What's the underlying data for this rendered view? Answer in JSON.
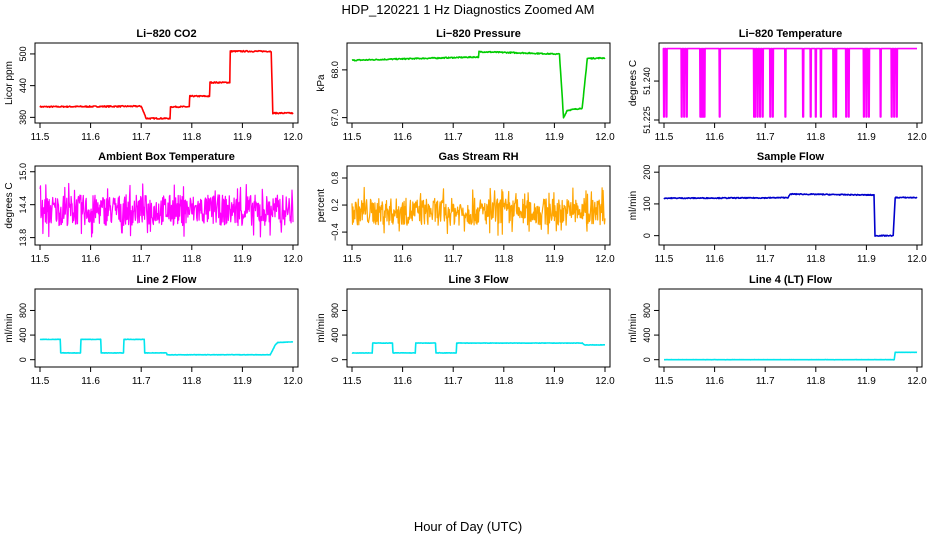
{
  "figure": {
    "title": "HDP_120221  1 Hz Diagnostics Zoomed AM",
    "xlabel": "Hour of Day (UTC)"
  },
  "chart_data": [
    {
      "type": "line",
      "title": "Li−820 CO2",
      "ylabel": "Licor ppm",
      "color": "#ff0000",
      "xlim": [
        11.5,
        12.0
      ],
      "ylim": [
        375,
        515
      ],
      "xticks": [
        "11.5",
        "11.6",
        "11.7",
        "11.8",
        "11.9",
        "12.0"
      ],
      "yticks": [
        {
          "v": 380,
          "label": "380"
        },
        {
          "v": 440,
          "label": "440"
        },
        {
          "v": 500,
          "label": "500"
        }
      ],
      "series": [
        {
          "name": "CO2",
          "steps": [
            [
              11.5,
              400
            ],
            [
              11.7,
              401
            ],
            [
              11.71,
              378
            ],
            [
              11.757,
              378
            ],
            [
              11.758,
              400
            ],
            [
              11.795,
              400
            ],
            [
              11.796,
              420
            ],
            [
              11.835,
              420
            ],
            [
              11.836,
              446
            ],
            [
              11.875,
              446
            ],
            [
              11.876,
              505
            ],
            [
              11.957,
              505
            ],
            [
              11.96,
              388
            ],
            [
              12.0,
              388
            ]
          ],
          "noise": 1.2
        }
      ]
    },
    {
      "type": "line",
      "title": "Li−820 Pressure",
      "ylabel": "kPa",
      "color": "#00cc00",
      "xlim": [
        11.5,
        12.0
      ],
      "ylim": [
        66.95,
        68.5
      ],
      "xticks": [
        "11.5",
        "11.6",
        "11.7",
        "11.8",
        "11.9",
        "12.0"
      ],
      "yticks": [
        {
          "v": 67.0,
          "label": "67.0"
        },
        {
          "v": 68.0,
          "label": "68.0"
        }
      ],
      "series": [
        {
          "name": "Pressure",
          "steps": [
            [
              11.5,
              68.2
            ],
            [
              11.6,
              68.23
            ],
            [
              11.75,
              68.27
            ],
            [
              11.751,
              68.38
            ],
            [
              11.85,
              68.35
            ],
            [
              11.91,
              68.33
            ],
            [
              11.918,
              67.0
            ],
            [
              11.925,
              67.15
            ],
            [
              11.955,
              67.2
            ],
            [
              11.965,
              68.24
            ],
            [
              12.0,
              68.25
            ]
          ],
          "noise": 0.012
        }
      ]
    },
    {
      "type": "line",
      "title": "Li−820 Temperature",
      "ylabel": "degrees C",
      "color": "#ff00ff",
      "xlim": [
        11.5,
        12.0
      ],
      "ylim": [
        51.225,
        51.2535
      ],
      "xticks": [
        "11.5",
        "11.6",
        "11.7",
        "11.8",
        "11.9",
        "12.0"
      ],
      "yticks": [
        {
          "v": 51.225,
          "label": "51.225"
        },
        {
          "v": 51.24,
          "label": "51.240"
        }
      ],
      "series": [
        {
          "name": "Temperature",
          "base": 51.2525,
          "dropTo": 51.2262,
          "drops": [
            11.5,
            11.505,
            11.535,
            11.54,
            11.545,
            11.572,
            11.575,
            11.578,
            11.58,
            11.61,
            11.678,
            11.68,
            11.685,
            11.69,
            11.695,
            11.71,
            11.715,
            11.74,
            11.775,
            11.79,
            11.8,
            11.81,
            11.835,
            11.84,
            11.86,
            11.865,
            11.895,
            11.9,
            11.9,
            11.905,
            11.928,
            11.95,
            11.955,
            11.96
          ]
        }
      ]
    },
    {
      "type": "line",
      "title": "Ambient Box Temperature",
      "ylabel": "degrees C",
      "color": "#ff00ff",
      "xlim": [
        11.5,
        12.0
      ],
      "ylim": [
        13.72,
        15.05
      ],
      "xticks": [
        "11.5",
        "11.6",
        "11.7",
        "11.8",
        "11.9",
        "12.0"
      ],
      "yticks": [
        {
          "v": 13.8,
          "label": "13.8"
        },
        {
          "v": 14.4,
          "label": "14.4"
        },
        {
          "v": 15.0,
          "label": "15.0"
        }
      ],
      "series": [
        {
          "name": "Ambient",
          "center": 14.3,
          "amp": 0.28,
          "spike": 0.5
        }
      ]
    },
    {
      "type": "line",
      "title": "Gas Stream RH",
      "ylabel": "percent",
      "color": "#ffa500",
      "xlim": [
        11.5,
        12.0
      ],
      "ylim": [
        -0.62,
        1.0
      ],
      "xticks": [
        "11.5",
        "11.6",
        "11.7",
        "11.8",
        "11.9",
        "12.0"
      ],
      "yticks": [
        {
          "v": -0.4,
          "label": "−0.4"
        },
        {
          "v": 0.2,
          "label": "0.2"
        },
        {
          "v": 0.8,
          "label": "0.8"
        }
      ],
      "series": [
        {
          "name": "RH",
          "center": 0.05,
          "amp": 0.3,
          "spike": 0.55
        }
      ]
    },
    {
      "type": "line",
      "title": "Sample Flow",
      "ylabel": "ml/min",
      "color": "#0000cc",
      "xlim": [
        11.5,
        12.0
      ],
      "ylim": [
        -20,
        210
      ],
      "xticks": [
        "11.5",
        "11.6",
        "11.7",
        "11.8",
        "11.9",
        "12.0"
      ],
      "yticks": [
        {
          "v": 0,
          "label": "0"
        },
        {
          "v": 100,
          "label": "100"
        },
        {
          "v": 200,
          "label": "200"
        }
      ],
      "series": [
        {
          "name": "Sample",
          "steps": [
            [
              11.5,
              118
            ],
            [
              11.7,
              119
            ],
            [
              11.745,
              120
            ],
            [
              11.75,
              131
            ],
            [
              11.915,
              128
            ],
            [
              11.917,
              0
            ],
            [
              11.953,
              0
            ],
            [
              11.957,
              120
            ],
            [
              12.0,
              120
            ]
          ],
          "noise": 1.5
        }
      ]
    },
    {
      "type": "line",
      "title": "Line 2 Flow",
      "ylabel": "ml/min",
      "color": "#00e5ee",
      "xlim": [
        11.5,
        12.0
      ],
      "ylim": [
        -70,
        1100
      ],
      "xticks": [
        "11.5",
        "11.6",
        "11.7",
        "11.8",
        "11.9",
        "12.0"
      ],
      "yticks": [
        {
          "v": 0,
          "label": "0"
        },
        {
          "v": 400,
          "label": "400"
        },
        {
          "v": 800,
          "label": "800"
        }
      ],
      "series": [
        {
          "name": "Line 2",
          "steps": [
            [
              11.5,
              330
            ],
            [
              11.54,
              330
            ],
            [
              11.541,
              110
            ],
            [
              11.58,
              110
            ],
            [
              11.581,
              330
            ],
            [
              11.62,
              330
            ],
            [
              11.621,
              110
            ],
            [
              11.665,
              110
            ],
            [
              11.666,
              330
            ],
            [
              11.706,
              330
            ],
            [
              11.707,
              110
            ],
            [
              11.75,
              110
            ],
            [
              11.751,
              80
            ],
            [
              11.955,
              80
            ],
            [
              11.965,
              240
            ],
            [
              11.97,
              280
            ],
            [
              12.0,
              290
            ]
          ],
          "noise": 3
        }
      ]
    },
    {
      "type": "line",
      "title": "Line 3 Flow",
      "ylabel": "ml/min",
      "color": "#00e5ee",
      "xlim": [
        11.5,
        12.0
      ],
      "ylim": [
        -70,
        1100
      ],
      "xticks": [
        "11.5",
        "11.6",
        "11.7",
        "11.8",
        "11.9",
        "12.0"
      ],
      "yticks": [
        {
          "v": 0,
          "label": "0"
        },
        {
          "v": 400,
          "label": "400"
        },
        {
          "v": 800,
          "label": "800"
        }
      ],
      "series": [
        {
          "name": "Line 3",
          "steps": [
            [
              11.5,
              110
            ],
            [
              11.54,
              110
            ],
            [
              11.541,
              270
            ],
            [
              11.58,
              270
            ],
            [
              11.581,
              110
            ],
            [
              11.625,
              110
            ],
            [
              11.626,
              270
            ],
            [
              11.665,
              270
            ],
            [
              11.666,
              110
            ],
            [
              11.706,
              110
            ],
            [
              11.707,
              270
            ],
            [
              11.955,
              270
            ],
            [
              11.96,
              240
            ],
            [
              12.0,
              240
            ]
          ],
          "noise": 3
        }
      ]
    },
    {
      "type": "line",
      "title": "Line 4 (LT) Flow",
      "ylabel": "ml/min",
      "color": "#00e5ee",
      "xlim": [
        11.5,
        12.0
      ],
      "ylim": [
        -70,
        1100
      ],
      "xticks": [
        "11.5",
        "11.6",
        "11.7",
        "11.8",
        "11.9",
        "12.0"
      ],
      "yticks": [
        {
          "v": 0,
          "label": "0"
        },
        {
          "v": 400,
          "label": "400"
        },
        {
          "v": 800,
          "label": "800"
        }
      ],
      "series": [
        {
          "name": "Line 4",
          "steps": [
            [
              11.5,
              0
            ],
            [
              11.955,
              0
            ],
            [
              11.957,
              120
            ],
            [
              12.0,
              120
            ]
          ],
          "noise": 1
        }
      ]
    }
  ]
}
